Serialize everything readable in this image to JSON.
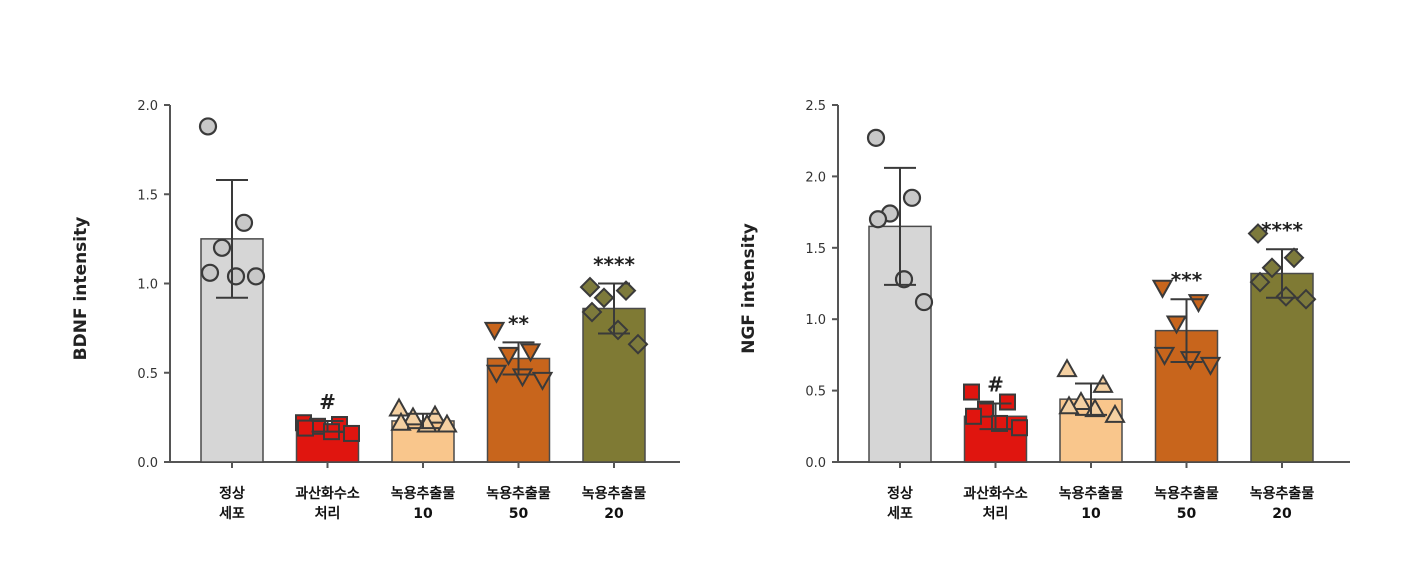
{
  "chart_data": [
    {
      "type": "bar",
      "ylabel": "BDNF intensity",
      "ylim": [
        0,
        2.0
      ],
      "yticks": [
        "0.0",
        "0.5",
        "1.0",
        "1.5",
        "2.0"
      ],
      "categories": [
        {
          "line1": "정상",
          "line2": "세포"
        },
        {
          "line1": "과산화수소",
          "line2": "처리"
        },
        {
          "line1": "녹용추출물",
          "line2": "10"
        },
        {
          "line1": "녹용추출물",
          "line2": "50"
        },
        {
          "line1": "녹용추출물",
          "line2": "20"
        }
      ],
      "values": [
        1.25,
        0.2,
        0.23,
        0.58,
        0.86
      ],
      "errors": [
        0.33,
        0.03,
        0.04,
        0.09,
        0.14
      ],
      "significance": [
        "",
        "#",
        "",
        "**",
        "****"
      ],
      "points": [
        [
          1.88,
          1.34,
          1.2,
          1.06,
          1.04,
          1.04
        ],
        [
          0.22,
          0.21,
          0.2,
          0.19,
          0.17,
          0.16
        ],
        [
          0.3,
          0.26,
          0.25,
          0.22,
          0.21,
          0.21
        ],
        [
          0.74,
          0.62,
          0.6,
          0.5,
          0.48,
          0.46
        ],
        [
          0.98,
          0.96,
          0.92,
          0.84,
          0.74,
          0.66
        ]
      ],
      "markers": [
        "circle",
        "square",
        "triangle-up",
        "triangle-down",
        "diamond"
      ]
    },
    {
      "type": "bar",
      "ylabel": "NGF intensity",
      "ylim": [
        0,
        2.5
      ],
      "yticks": [
        "0.0",
        "0.5",
        "1.0",
        "1.5",
        "2.0",
        "2.5"
      ],
      "categories": [
        {
          "line1": "정상",
          "line2": "세포"
        },
        {
          "line1": "과산화수소",
          "line2": "처리"
        },
        {
          "line1": "녹용추출물",
          "line2": "10"
        },
        {
          "line1": "녹용추출물",
          "line2": "50"
        },
        {
          "line1": "녹용추출물",
          "line2": "20"
        }
      ],
      "values": [
        1.65,
        0.32,
        0.44,
        0.92,
        1.32
      ],
      "errors": [
        0.41,
        0.09,
        0.11,
        0.22,
        0.17
      ],
      "significance": [
        "",
        "#",
        "",
        "***",
        "****"
      ],
      "points": [
        [
          2.27,
          1.85,
          1.74,
          1.7,
          1.28,
          1.12
        ],
        [
          0.49,
          0.42,
          0.37,
          0.32,
          0.27,
          0.24
        ],
        [
          0.65,
          0.54,
          0.42,
          0.39,
          0.37,
          0.33
        ],
        [
          1.22,
          1.12,
          0.97,
          0.75,
          0.72,
          0.68
        ],
        [
          1.6,
          1.43,
          1.36,
          1.26,
          1.16,
          1.14
        ]
      ],
      "markers": [
        "circle",
        "square",
        "triangle-up",
        "triangle-down",
        "diamond"
      ]
    }
  ],
  "colors": {
    "bars": [
      "#d6d6d6",
      "#e0150f",
      "#f9c68c",
      "#c8651c",
      "#7f7a34"
    ],
    "points": [
      "#c8c8c8",
      "#e0150f",
      "#f4d0a2",
      "#c8651c",
      "#7d7a3c"
    ],
    "axis": "#555555",
    "outline": "#4a4a4a"
  }
}
